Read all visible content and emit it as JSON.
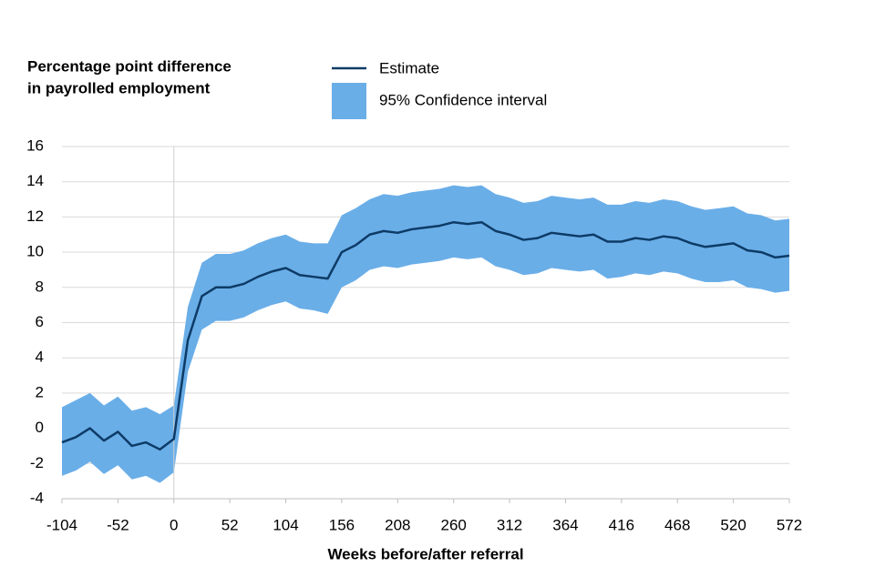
{
  "chart_data": {
    "type": "line",
    "y_label": [
      "Percentage point difference",
      "in payrolled employment"
    ],
    "x_label": "Weeks before/after referral",
    "x": [
      -104,
      -91,
      -78,
      -65,
      -52,
      -39,
      -26,
      -13,
      0,
      13,
      26,
      39,
      52,
      65,
      78,
      91,
      104,
      117,
      130,
      143,
      156,
      169,
      182,
      195,
      208,
      221,
      234,
      247,
      260,
      273,
      286,
      299,
      312,
      325,
      338,
      351,
      364,
      377,
      390,
      403,
      416,
      429,
      442,
      455,
      468,
      481,
      494,
      507,
      520,
      533,
      546,
      559,
      572
    ],
    "series": [
      {
        "name": "Estimate",
        "color": "#0d3b66",
        "values": [
          -0.8,
          -0.5,
          0.0,
          -0.7,
          -0.2,
          -1.0,
          -0.8,
          -1.2,
          -0.6,
          5.0,
          7.5,
          8.0,
          8.0,
          8.2,
          8.6,
          8.9,
          9.1,
          8.7,
          8.6,
          8.5,
          10.0,
          10.4,
          11.0,
          11.2,
          11.1,
          11.3,
          11.4,
          11.5,
          11.7,
          11.6,
          11.7,
          11.2,
          11.0,
          10.7,
          10.8,
          11.1,
          11.0,
          10.9,
          11.0,
          10.6,
          10.6,
          10.8,
          10.7,
          10.9,
          10.8,
          10.5,
          10.3,
          10.4,
          10.5,
          10.1,
          10.0,
          9.7,
          9.8
        ]
      }
    ],
    "interval": {
      "name": "95% Confidence interval",
      "color": "#6aaee8",
      "lower": [
        -2.7,
        -2.4,
        -1.9,
        -2.6,
        -2.1,
        -2.9,
        -2.7,
        -3.1,
        -2.5,
        3.2,
        5.6,
        6.1,
        6.1,
        6.3,
        6.7,
        7.0,
        7.2,
        6.8,
        6.7,
        6.5,
        8.0,
        8.4,
        9.0,
        9.2,
        9.1,
        9.3,
        9.4,
        9.5,
        9.7,
        9.6,
        9.7,
        9.2,
        9.0,
        8.7,
        8.8,
        9.1,
        9.0,
        8.9,
        9.0,
        8.5,
        8.6,
        8.8,
        8.7,
        8.9,
        8.8,
        8.5,
        8.3,
        8.3,
        8.4,
        8.0,
        7.9,
        7.7,
        7.8
      ],
      "upper": [
        1.2,
        1.6,
        2.0,
        1.3,
        1.8,
        1.0,
        1.2,
        0.8,
        1.3,
        6.9,
        9.4,
        9.9,
        9.9,
        10.1,
        10.5,
        10.8,
        11.0,
        10.6,
        10.5,
        10.5,
        12.1,
        12.5,
        13.0,
        13.3,
        13.2,
        13.4,
        13.5,
        13.6,
        13.8,
        13.7,
        13.8,
        13.3,
        13.1,
        12.8,
        12.9,
        13.2,
        13.1,
        13.0,
        13.1,
        12.7,
        12.7,
        12.9,
        12.8,
        13.0,
        12.9,
        12.6,
        12.4,
        12.5,
        12.6,
        12.2,
        12.1,
        11.8,
        11.9
      ]
    },
    "xlim": [
      -104,
      572
    ],
    "xticks": [
      -104,
      -52,
      0,
      52,
      104,
      156,
      208,
      260,
      312,
      364,
      416,
      468,
      520,
      572
    ],
    "ylim": [
      -4,
      16
    ],
    "yticks": [
      -4,
      -2,
      0,
      2,
      4,
      6,
      8,
      10,
      12,
      14,
      16
    ],
    "grid": true,
    "vline": 0
  }
}
